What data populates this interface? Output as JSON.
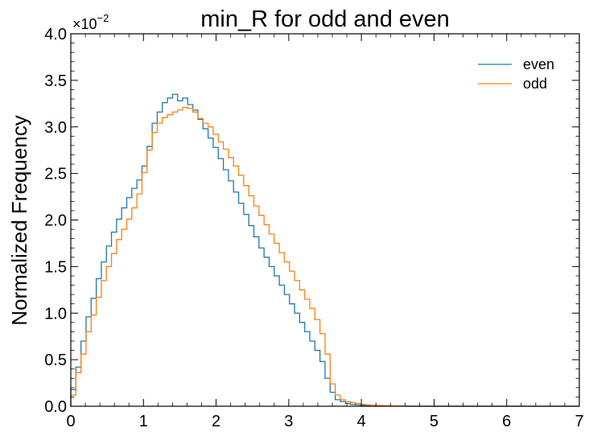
{
  "chart_data": {
    "type": "histogram-step",
    "title": "min_R for odd and even",
    "xlabel": "",
    "ylabel": "Normalized Frequency",
    "xlim": [
      0,
      7
    ],
    "ylim": [
      0,
      4.0
    ],
    "y_scale_multiplier": "×10",
    "y_scale_exponent": "−2",
    "x_ticks": [
      "0",
      "1",
      "2",
      "3",
      "4",
      "5",
      "6",
      "7"
    ],
    "y_ticks": [
      "0.0",
      "0.5",
      "1.0",
      "1.5",
      "2.0",
      "2.5",
      "3.0",
      "3.5",
      "4.0"
    ],
    "grid": false,
    "legend_position": "top-right",
    "bin_width": 0.07,
    "series": [
      {
        "name": "even",
        "color": "#1f77b4",
        "values": [
          0.18,
          0.42,
          0.7,
          0.96,
          1.16,
          1.37,
          1.55,
          1.72,
          1.87,
          2.01,
          2.13,
          2.24,
          2.34,
          2.43,
          2.58,
          2.79,
          3.04,
          3.16,
          3.26,
          3.31,
          3.35,
          3.28,
          3.31,
          3.24,
          3.18,
          3.08,
          2.98,
          2.88,
          2.78,
          2.66,
          2.54,
          2.42,
          2.3,
          2.18,
          2.06,
          1.94,
          1.82,
          1.7,
          1.6,
          1.5,
          1.4,
          1.3,
          1.2,
          1.1,
          1.0,
          0.9,
          0.8,
          0.7,
          0.6,
          0.48,
          0.3,
          0.15,
          0.07,
          0.05,
          0.03,
          0.02,
          0.015,
          0.01,
          0.005,
          0.005,
          0.003,
          0.002,
          0.002,
          0.001,
          0.001,
          0.001,
          0.0,
          0.0,
          0.0,
          0.0,
          0.0,
          0.0,
          0.0,
          0.0,
          0.0,
          0.0,
          0.0,
          0.0,
          0.0,
          0.0,
          0.0,
          0.0,
          0.0,
          0.0,
          0.0,
          0.0,
          0.0,
          0.0,
          0.0,
          0.0,
          0.0,
          0.0,
          0.0,
          0.0,
          0.0,
          0.0,
          0.0,
          0.0,
          0.0,
          0.0
        ]
      },
      {
        "name": "odd",
        "color": "#ff7f0e",
        "values": [
          0.12,
          0.36,
          0.56,
          0.8,
          0.98,
          1.17,
          1.35,
          1.5,
          1.64,
          1.79,
          1.9,
          2.01,
          2.13,
          2.28,
          2.51,
          2.75,
          2.94,
          3.04,
          3.1,
          3.13,
          3.16,
          3.18,
          3.21,
          3.2,
          3.16,
          3.09,
          3.04,
          3.0,
          2.92,
          2.84,
          2.76,
          2.67,
          2.58,
          2.48,
          2.37,
          2.26,
          2.15,
          2.05,
          1.95,
          1.85,
          1.75,
          1.65,
          1.55,
          1.45,
          1.35,
          1.25,
          1.15,
          1.05,
          0.93,
          0.78,
          0.56,
          0.24,
          0.12,
          0.07,
          0.05,
          0.04,
          0.03,
          0.02,
          0.015,
          0.01,
          0.008,
          0.006,
          0.005,
          0.003,
          0.002,
          0.001,
          0.0,
          0.0,
          0.0,
          0.0,
          0.0,
          0.0,
          0.0,
          0.0,
          0.0,
          0.0,
          0.0,
          0.0,
          0.0,
          0.0,
          0.0,
          0.0,
          0.0,
          0.0,
          0.0,
          0.0,
          0.0,
          0.0,
          0.0,
          0.0,
          0.0,
          0.0,
          0.0,
          0.0,
          0.0,
          0.0,
          0.0,
          0.0,
          0.0,
          0.0
        ]
      }
    ]
  }
}
